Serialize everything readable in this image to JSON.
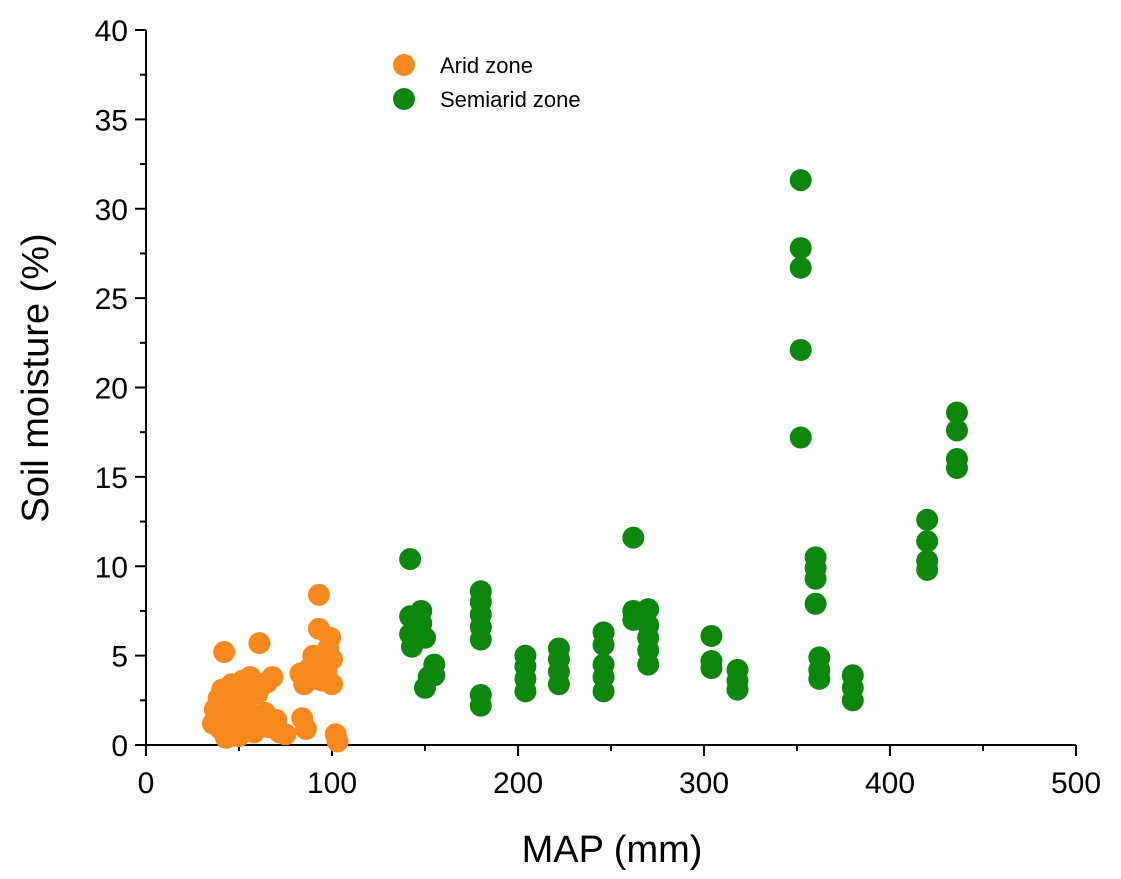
{
  "chart_data": {
    "type": "scatter",
    "title": "",
    "xlabel": "MAP (mm)",
    "ylabel": "Soil moisture (%)",
    "xlim": [
      0,
      500
    ],
    "ylim": [
      0,
      40
    ],
    "xticks": [
      "0",
      "100",
      "200",
      "300",
      "400",
      "500"
    ],
    "yticks": [
      "0",
      "5",
      "10",
      "15",
      "20",
      "25",
      "30",
      "35",
      "40"
    ],
    "grid": false,
    "legend_position": "top-left",
    "series": [
      {
        "name": "Arid zone",
        "color": "#f7891f",
        "points": [
          [
            36,
            1.2
          ],
          [
            37,
            2.0
          ],
          [
            38,
            1.5
          ],
          [
            39,
            2.6
          ],
          [
            40,
            0.9
          ],
          [
            41,
            3.1
          ],
          [
            42,
            5.2
          ],
          [
            42,
            1.8
          ],
          [
            43,
            0.4
          ],
          [
            44,
            2.4
          ],
          [
            45,
            1.1
          ],
          [
            46,
            3.4
          ],
          [
            47,
            0.7
          ],
          [
            47,
            2.0
          ],
          [
            48,
            1.5
          ],
          [
            49,
            3.0
          ],
          [
            50,
            0.5
          ],
          [
            50,
            2.8
          ],
          [
            51,
            1.3
          ],
          [
            52,
            3.6
          ],
          [
            53,
            0.9
          ],
          [
            54,
            2.2
          ],
          [
            55,
            1.0
          ],
          [
            56,
            3.8
          ],
          [
            57,
            1.7
          ],
          [
            58,
            0.7
          ],
          [
            60,
            2.9
          ],
          [
            61,
            5.7
          ],
          [
            62,
            3.3
          ],
          [
            64,
            1.8
          ],
          [
            65,
            3.5
          ],
          [
            66,
            1.0
          ],
          [
            68,
            3.8
          ],
          [
            70,
            1.4
          ],
          [
            72,
            0.7
          ],
          [
            75,
            0.6
          ],
          [
            83,
            4.0
          ],
          [
            84,
            1.5
          ],
          [
            85,
            3.4
          ],
          [
            86,
            0.9
          ],
          [
            88,
            4.3
          ],
          [
            90,
            5.0
          ],
          [
            91,
            3.7
          ],
          [
            93,
            8.4
          ],
          [
            93,
            6.5
          ],
          [
            94,
            4.6
          ],
          [
            95,
            3.6
          ],
          [
            97,
            4.1
          ],
          [
            98,
            5.4
          ],
          [
            99,
            6.0
          ],
          [
            100,
            3.4
          ],
          [
            100,
            4.8
          ],
          [
            102,
            0.6
          ],
          [
            103,
            0.2
          ]
        ]
      },
      {
        "name": "Semiarid zone",
        "color": "#0c860c",
        "points": [
          [
            142,
            10.4
          ],
          [
            142,
            7.2
          ],
          [
            142,
            6.2
          ],
          [
            143,
            5.5
          ],
          [
            148,
            7.5
          ],
          [
            148,
            6.8
          ],
          [
            150,
            6.0
          ],
          [
            150,
            3.2
          ],
          [
            152,
            3.8
          ],
          [
            155,
            4.5
          ],
          [
            155,
            3.9
          ],
          [
            180,
            8.6
          ],
          [
            180,
            8.0
          ],
          [
            180,
            7.3
          ],
          [
            180,
            6.6
          ],
          [
            180,
            5.9
          ],
          [
            180,
            2.8
          ],
          [
            180,
            2.2
          ],
          [
            204,
            5.0
          ],
          [
            204,
            4.4
          ],
          [
            204,
            3.7
          ],
          [
            204,
            3.0
          ],
          [
            222,
            5.4
          ],
          [
            222,
            4.8
          ],
          [
            222,
            4.1
          ],
          [
            222,
            3.4
          ],
          [
            246,
            6.3
          ],
          [
            246,
            5.6
          ],
          [
            246,
            4.5
          ],
          [
            246,
            3.8
          ],
          [
            246,
            3.0
          ],
          [
            262,
            11.6
          ],
          [
            262,
            7.5
          ],
          [
            262,
            7.0
          ],
          [
            264,
            7.3
          ],
          [
            270,
            7.6
          ],
          [
            270,
            6.7
          ],
          [
            270,
            6.0
          ],
          [
            270,
            5.3
          ],
          [
            270,
            4.5
          ],
          [
            304,
            6.1
          ],
          [
            304,
            4.7
          ],
          [
            304,
            4.3
          ],
          [
            318,
            4.2
          ],
          [
            318,
            3.6
          ],
          [
            318,
            3.1
          ],
          [
            352,
            31.6
          ],
          [
            352,
            27.8
          ],
          [
            352,
            26.7
          ],
          [
            352,
            22.1
          ],
          [
            352,
            17.2
          ],
          [
            360,
            10.5
          ],
          [
            360,
            9.9
          ],
          [
            360,
            9.3
          ],
          [
            360,
            7.9
          ],
          [
            362,
            4.9
          ],
          [
            362,
            4.2
          ],
          [
            362,
            3.7
          ],
          [
            380,
            3.9
          ],
          [
            380,
            3.2
          ],
          [
            380,
            2.5
          ],
          [
            420,
            12.6
          ],
          [
            420,
            11.4
          ],
          [
            420,
            10.3
          ],
          [
            420,
            9.8
          ],
          [
            436,
            18.6
          ],
          [
            436,
            17.6
          ],
          [
            436,
            16.0
          ],
          [
            436,
            15.5
          ]
        ]
      }
    ]
  }
}
